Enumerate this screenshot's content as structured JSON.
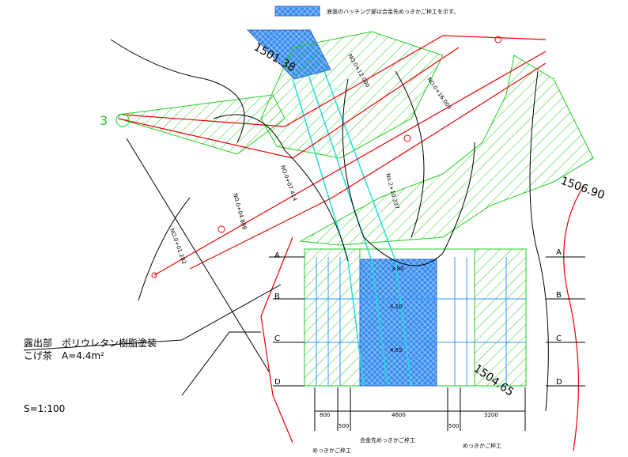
{
  "legend": {
    "text": "底張のハッチング部は合金先めっきかご枠工を示す。"
  },
  "notes": {
    "coating": "露出部　ポリウレタン樹脂塗装",
    "area": "こげ茶　A=4.4m²",
    "scale": "S=1:100"
  },
  "dimensions": {
    "items": [
      "800",
      "500",
      "4600",
      "500",
      "3200"
    ],
    "inner": [
      "3.80",
      "4.10",
      "4.65"
    ]
  },
  "works": {
    "center": "合金先めっきかご枠工",
    "left": "めっきかご枠工",
    "right": "めっきかご枠工"
  },
  "sections": {
    "left": [
      "A",
      "B",
      "C",
      "D"
    ],
    "right": [
      "A",
      "B",
      "C",
      "D"
    ]
  },
  "elevations": [
    "1501.38",
    "1504.65",
    "1506.90"
  ],
  "point": "3",
  "stations": [
    "NO.0+16.000",
    "NO.0+04.888",
    "No.2+10.337",
    "NO.0+07.414",
    "NO.0+01.282",
    "NO.0+12.000"
  ]
}
